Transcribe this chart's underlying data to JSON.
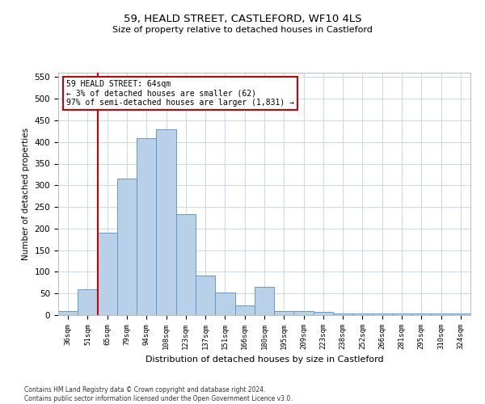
{
  "title1": "59, HEALD STREET, CASTLEFORD, WF10 4LS",
  "title2": "Size of property relative to detached houses in Castleford",
  "xlabel": "Distribution of detached houses by size in Castleford",
  "ylabel": "Number of detached properties",
  "categories": [
    "36sqm",
    "51sqm",
    "65sqm",
    "79sqm",
    "94sqm",
    "108sqm",
    "123sqm",
    "137sqm",
    "151sqm",
    "166sqm",
    "180sqm",
    "195sqm",
    "209sqm",
    "223sqm",
    "238sqm",
    "252sqm",
    "266sqm",
    "281sqm",
    "295sqm",
    "310sqm",
    "324sqm"
  ],
  "values": [
    10,
    60,
    190,
    315,
    408,
    430,
    233,
    92,
    52,
    22,
    65,
    10,
    10,
    7,
    4,
    3,
    3,
    3,
    3,
    3,
    4
  ],
  "bar_color": "#b8d0e8",
  "bar_edge_color": "#6699cc",
  "property_line_index": 2,
  "annotation_line1": "59 HEALD STREET: 64sqm",
  "annotation_line2": "← 3% of detached houses are smaller (62)",
  "annotation_line3": "97% of semi-detached houses are larger (1,831) →",
  "annotation_box_color": "#ffffff",
  "annotation_box_edge": "#cc0000",
  "red_line_color": "#cc0000",
  "ylim": [
    0,
    560
  ],
  "yticks": [
    0,
    50,
    100,
    150,
    200,
    250,
    300,
    350,
    400,
    450,
    500,
    550
  ],
  "footer1": "Contains HM Land Registry data © Crown copyright and database right 2024.",
  "footer2": "Contains public sector information licensed under the Open Government Licence v3.0.",
  "bg_color": "#ffffff",
  "grid_color": "#c8d8ec"
}
